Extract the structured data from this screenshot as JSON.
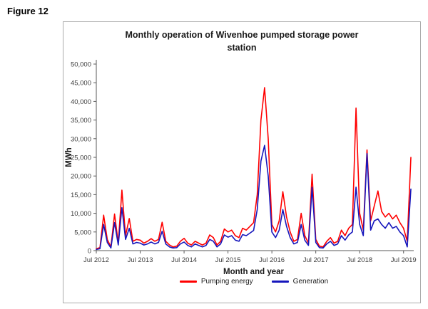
{
  "figure_label": "Figure 12",
  "chart": {
    "title_line1": "Monthly operation of Wivenhoe pumped storage power",
    "title_line2": "station",
    "xlabel": "Month and year",
    "ylabel": "MWh"
  },
  "legend": [
    {
      "label": "Pumping energy",
      "color": "#ff0000"
    },
    {
      "label": "Generation",
      "color": "#1616bc"
    }
  ],
  "chart_data": {
    "type": "line",
    "title": "Monthly operation of Wivenhoe pumped storage power station",
    "xlabel": "Month and year",
    "ylabel": "MWh",
    "ylim": [
      0,
      50000
    ],
    "ytick_step": 5000,
    "grid": false,
    "legend_position": "bottom",
    "x_start": "Jul 2012",
    "x_frequency": "monthly",
    "x_tick_labels": [
      "Jul 2012",
      "Jul 2013",
      "Jul 2014",
      "Jul 2015",
      "Jul 2016",
      "Jul 2017",
      "Jul 2018",
      "Jul 2019"
    ],
    "x_tick_indices": [
      0,
      12,
      24,
      36,
      48,
      60,
      72,
      84
    ],
    "series": [
      {
        "name": "Pumping energy",
        "color": "#ff0000",
        "values": [
          500,
          800,
          9500,
          3000,
          1000,
          9800,
          2000,
          16200,
          4000,
          8600,
          2500,
          3000,
          2800,
          2000,
          2500,
          3200,
          2500,
          3000,
          7600,
          2500,
          1500,
          1000,
          1200,
          2500,
          3300,
          2000,
          1500,
          2500,
          2000,
          1500,
          2000,
          4200,
          3500,
          1500,
          2500,
          5800,
          5000,
          5500,
          4000,
          3500,
          6000,
          5500,
          6500,
          7500,
          15000,
          35000,
          43700,
          30000,
          7000,
          5000,
          8000,
          15800,
          9000,
          5000,
          2500,
          3000,
          10000,
          4000,
          2000,
          20500,
          3000,
          1200,
          1000,
          2500,
          3500,
          2000,
          2500,
          5500,
          4000,
          6000,
          7000,
          38200,
          10000,
          5500,
          27000,
          8000,
          12000,
          16000,
          10500,
          9000,
          10000,
          8500,
          9500,
          7500,
          6000,
          2500,
          25000
        ]
      },
      {
        "name": "Generation",
        "color": "#1616bc",
        "values": [
          300,
          500,
          7000,
          2200,
          700,
          7500,
          1500,
          11500,
          3000,
          6000,
          1800,
          2200,
          2000,
          1500,
          1800,
          2300,
          1800,
          2200,
          5200,
          1800,
          1000,
          700,
          800,
          1800,
          2300,
          1400,
          1000,
          1800,
          1400,
          1000,
          1400,
          3000,
          2500,
          1000,
          1800,
          4200,
          3600,
          4000,
          2800,
          2500,
          4300,
          4000,
          4700,
          5400,
          11000,
          24000,
          28200,
          20000,
          5000,
          3500,
          5500,
          11000,
          6500,
          3500,
          1800,
          2200,
          7000,
          2800,
          1400,
          17000,
          2200,
          800,
          700,
          1800,
          2500,
          1400,
          1800,
          4000,
          2800,
          4200,
          5000,
          17000,
          7000,
          4000,
          26000,
          5500,
          8000,
          8500,
          7000,
          6000,
          7500,
          6000,
          6500,
          5000,
          4000,
          1000,
          16500
        ]
      }
    ]
  }
}
